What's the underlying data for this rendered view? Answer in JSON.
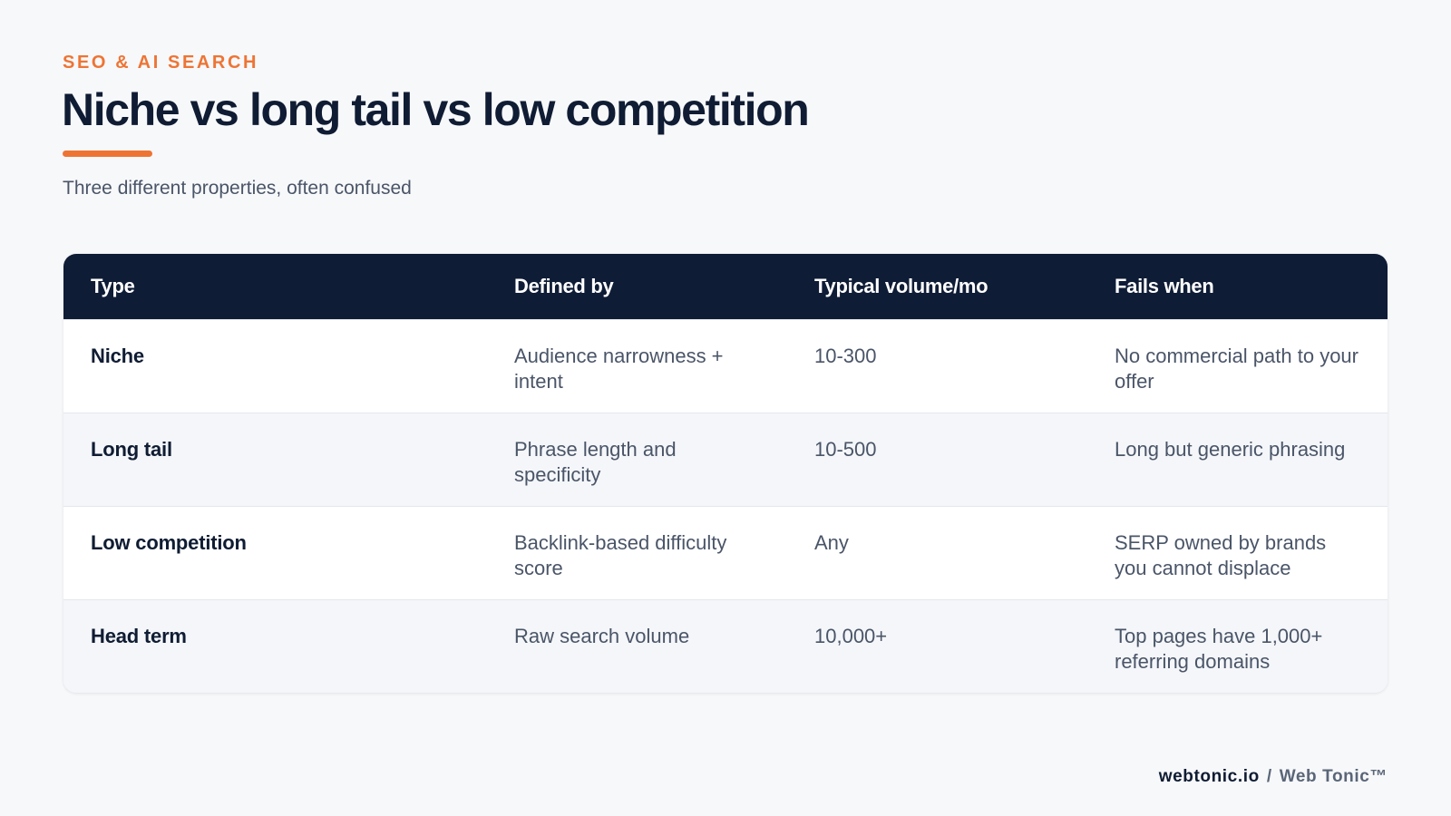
{
  "header": {
    "eyebrow": "SEO & AI SEARCH",
    "title": "Niche vs long tail vs low competition",
    "subtitle": "Three different properties, often confused"
  },
  "table": {
    "columns": [
      "Type",
      "Defined by",
      "Typical volume/mo",
      "Fails when"
    ],
    "rows": [
      {
        "type": "Niche",
        "defined_by": "Audience narrowness + intent",
        "volume": "10-300",
        "fails_when": "No commercial path to your offer"
      },
      {
        "type": "Long tail",
        "defined_by": "Phrase length and specificity",
        "volume": "10-500",
        "fails_when": "Long but generic phrasing"
      },
      {
        "type": "Low competition",
        "defined_by": "Backlink-based difficulty score",
        "volume": "Any",
        "fails_when": "SERP owned by brands you cannot displace"
      },
      {
        "type": "Head term",
        "defined_by": "Raw search volume",
        "volume": "10,000+",
        "fails_when": "Top pages have 1,000+ referring domains"
      }
    ]
  },
  "footer": {
    "site": "webtonic.io",
    "separator": "/",
    "brand": "Web Tonic™"
  },
  "colors": {
    "accent": "#ee7434",
    "navy": "#0f1c36",
    "background": "#f7f8fa"
  }
}
